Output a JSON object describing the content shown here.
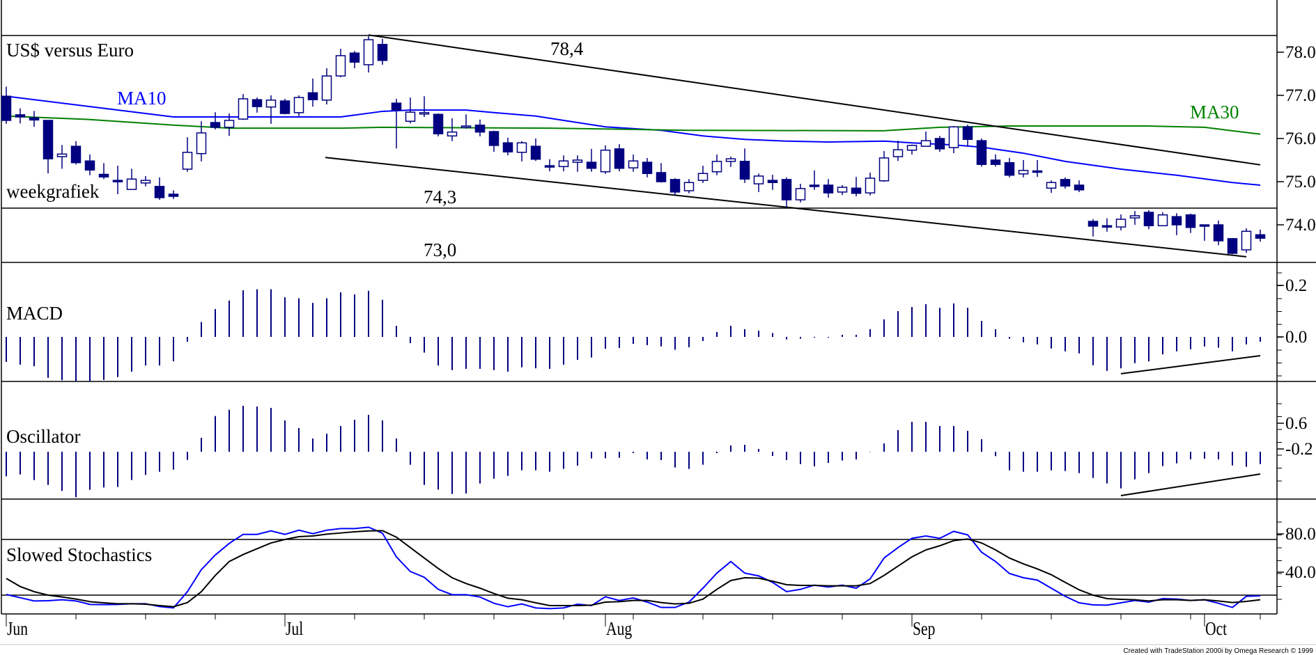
{
  "colors": {
    "candle": "#000080",
    "ma10": "#0000ff",
    "ma30": "#008000",
    "histogram": "#000080",
    "stoch_fast": "#0000ff",
    "stoch_slow": "#000000",
    "trendline": "#000000"
  },
  "chart_data": [
    {
      "type": "candlestick",
      "title": "US$ versus Euro",
      "subtitle": "weekgrafiek",
      "ylim": [
        73.0,
        78.4
      ],
      "yticks": [
        {
          "v": 78,
          "label": "78.0"
        },
        {
          "v": 77,
          "label": "77.0"
        },
        {
          "v": 76,
          "label": "76.0"
        },
        {
          "v": 75,
          "label": "75.0"
        },
        {
          "v": 74,
          "label": "74.0"
        }
      ],
      "level_labels": {
        "top": "78,4",
        "middle": "74,3",
        "bottom": "73,0"
      },
      "ohlc": [
        [
          76.98,
          77.2,
          76.34,
          76.42
        ],
        [
          76.55,
          76.7,
          76.35,
          76.5
        ],
        [
          76.48,
          76.64,
          76.27,
          76.43
        ],
        [
          76.42,
          76.42,
          75.19,
          75.53
        ],
        [
          75.58,
          75.85,
          75.3,
          75.64
        ],
        [
          75.82,
          75.94,
          75.4,
          75.44
        ],
        [
          75.48,
          75.63,
          75.15,
          75.27
        ],
        [
          75.17,
          75.43,
          75.06,
          75.11
        ],
        [
          75.03,
          75.37,
          74.71,
          75.0
        ],
        [
          74.82,
          75.3,
          74.82,
          75.06
        ],
        [
          74.97,
          75.13,
          74.89,
          75.03
        ],
        [
          74.89,
          75.1,
          74.58,
          74.63
        ],
        [
          74.71,
          74.8,
          74.6,
          74.66
        ],
        [
          75.29,
          76.03,
          75.23,
          75.68
        ],
        [
          75.65,
          76.4,
          75.47,
          76.13
        ],
        [
          76.37,
          76.61,
          76.21,
          76.26
        ],
        [
          76.26,
          76.58,
          76.06,
          76.42
        ],
        [
          76.45,
          77.03,
          76.43,
          76.92
        ],
        [
          76.9,
          76.95,
          76.6,
          76.74
        ],
        [
          76.73,
          77.0,
          76.34,
          76.89
        ],
        [
          76.87,
          76.92,
          76.56,
          76.58
        ],
        [
          76.6,
          77.0,
          76.52,
          76.95
        ],
        [
          77.06,
          77.39,
          76.74,
          76.9
        ],
        [
          76.89,
          77.63,
          76.79,
          77.45
        ],
        [
          77.45,
          78.08,
          77.42,
          77.92
        ],
        [
          77.98,
          78.03,
          77.63,
          77.77
        ],
        [
          77.71,
          78.37,
          77.53,
          78.29
        ],
        [
          78.18,
          78.31,
          77.71,
          77.81
        ],
        [
          76.82,
          76.92,
          75.77,
          76.66
        ],
        [
          76.4,
          76.95,
          76.35,
          76.61
        ],
        [
          76.57,
          76.98,
          76.5,
          76.6
        ],
        [
          76.56,
          76.58,
          76.05,
          76.11
        ],
        [
          76.06,
          76.47,
          75.94,
          76.15
        ],
        [
          76.26,
          76.56,
          76.23,
          76.29
        ],
        [
          76.31,
          76.44,
          76.05,
          76.15
        ],
        [
          76.16,
          76.18,
          75.69,
          75.84
        ],
        [
          75.9,
          76.02,
          75.61,
          75.69
        ],
        [
          75.68,
          75.94,
          75.47,
          75.9
        ],
        [
          75.82,
          76.0,
          75.48,
          75.52
        ],
        [
          75.37,
          75.52,
          75.24,
          75.34
        ],
        [
          75.35,
          75.61,
          75.24,
          75.48
        ],
        [
          75.45,
          75.61,
          75.23,
          75.5
        ],
        [
          75.45,
          75.76,
          75.23,
          75.31
        ],
        [
          75.23,
          75.84,
          75.18,
          75.73
        ],
        [
          75.76,
          75.87,
          75.24,
          75.31
        ],
        [
          75.32,
          75.63,
          75.23,
          75.48
        ],
        [
          75.45,
          75.55,
          75.1,
          75.19
        ],
        [
          75.21,
          75.43,
          74.98,
          75.0
        ],
        [
          75.05,
          75.08,
          74.68,
          74.76
        ],
        [
          74.79,
          75.06,
          74.73,
          74.98
        ],
        [
          75.03,
          75.37,
          74.97,
          75.19
        ],
        [
          75.23,
          75.63,
          75.15,
          75.47
        ],
        [
          75.47,
          75.58,
          75.34,
          75.53
        ],
        [
          75.47,
          75.77,
          74.97,
          75.06
        ],
        [
          74.95,
          75.19,
          74.76,
          75.13
        ],
        [
          75.03,
          75.16,
          74.81,
          74.98
        ],
        [
          75.05,
          75.1,
          74.4,
          74.58
        ],
        [
          74.58,
          74.95,
          74.52,
          74.84
        ],
        [
          74.92,
          75.26,
          74.81,
          74.89
        ],
        [
          74.92,
          75.06,
          74.63,
          74.74
        ],
        [
          74.76,
          74.92,
          74.69,
          74.87
        ],
        [
          74.85,
          75.11,
          74.66,
          74.73
        ],
        [
          74.74,
          75.21,
          74.68,
          75.08
        ],
        [
          75.02,
          75.71,
          75.0,
          75.55
        ],
        [
          75.58,
          75.95,
          75.48,
          75.74
        ],
        [
          75.73,
          75.86,
          75.63,
          75.84
        ],
        [
          75.82,
          76.16,
          75.82,
          75.95
        ],
        [
          76.0,
          76.06,
          75.69,
          75.76
        ],
        [
          75.79,
          76.29,
          75.66,
          76.27
        ],
        [
          76.27,
          76.32,
          75.82,
          75.98
        ],
        [
          75.95,
          76.0,
          75.35,
          75.4
        ],
        [
          75.5,
          75.63,
          75.35,
          75.4
        ],
        [
          75.44,
          75.55,
          75.1,
          75.15
        ],
        [
          75.18,
          75.5,
          75.1,
          75.26
        ],
        [
          75.25,
          75.5,
          75.11,
          75.24
        ],
        [
          74.85,
          75.03,
          74.74,
          74.98
        ],
        [
          75.05,
          75.1,
          74.84,
          74.9
        ],
        [
          74.92,
          75.03,
          74.76,
          74.81
        ],
        [
          74.08,
          74.13,
          73.73,
          73.97
        ],
        [
          73.98,
          74.15,
          73.84,
          73.95
        ],
        [
          73.95,
          74.24,
          73.87,
          74.13
        ],
        [
          74.16,
          74.32,
          74.0,
          74.21
        ],
        [
          74.29,
          74.34,
          73.9,
          73.98
        ],
        [
          73.98,
          74.29,
          73.97,
          74.23
        ],
        [
          74.19,
          74.27,
          73.76,
          74.0
        ],
        [
          74.23,
          74.26,
          73.81,
          73.94
        ],
        [
          74.0,
          74.0,
          73.63,
          73.98
        ],
        [
          74.0,
          74.1,
          73.53,
          73.63
        ],
        [
          73.68,
          73.69,
          73.32,
          73.34
        ],
        [
          73.42,
          73.92,
          73.35,
          73.85
        ],
        [
          73.77,
          73.89,
          73.61,
          73.69
        ]
      ],
      "series": [
        {
          "name": "MA10",
          "points": [
            [
              0,
              76.98
            ],
            [
              6,
              76.74
            ],
            [
              12,
              76.5
            ],
            [
              24,
              76.5
            ],
            [
              27,
              76.63
            ],
            [
              29,
              76.66
            ],
            [
              33,
              76.66
            ],
            [
              35,
              76.6
            ],
            [
              38,
              76.52
            ],
            [
              43,
              76.27
            ],
            [
              47,
              76.19
            ],
            [
              50,
              76.06
            ],
            [
              53,
              75.98
            ],
            [
              56,
              75.94
            ],
            [
              59,
              75.92
            ],
            [
              63,
              75.94
            ],
            [
              65,
              75.9
            ],
            [
              68,
              75.85
            ],
            [
              70,
              75.8
            ],
            [
              73,
              75.66
            ],
            [
              76,
              75.47
            ],
            [
              80,
              75.29
            ],
            [
              84,
              75.15
            ],
            [
              88,
              74.98
            ],
            [
              90,
              74.92
            ]
          ]
        },
        {
          "name": "MA30",
          "points": [
            [
              0,
              76.52
            ],
            [
              6,
              76.44
            ],
            [
              12,
              76.31
            ],
            [
              16,
              76.24
            ],
            [
              24,
              76.24
            ],
            [
              27,
              76.26
            ],
            [
              39,
              76.24
            ],
            [
              49,
              76.19
            ],
            [
              63,
              76.18
            ],
            [
              67,
              76.26
            ],
            [
              72,
              76.29
            ],
            [
              82,
              76.29
            ],
            [
              86,
              76.26
            ],
            [
              90,
              76.1
            ]
          ]
        }
      ],
      "trendlines": [
        [
          [
            26,
            78.4
          ],
          [
            90,
            75.39
          ]
        ],
        [
          [
            22.9,
            75.56
          ],
          [
            89,
            73.26
          ]
        ]
      ]
    },
    {
      "type": "bar",
      "title": "MACD",
      "yticks": [
        {
          "v": 0.2,
          "label": "0.2"
        },
        {
          "v": 0.0,
          "label": "0.0"
        }
      ],
      "values": [
        -0.097,
        -0.108,
        -0.114,
        -0.159,
        -0.168,
        -0.172,
        -0.172,
        -0.167,
        -0.156,
        -0.135,
        -0.111,
        -0.111,
        -0.095,
        -0.019,
        0.058,
        0.108,
        0.141,
        0.181,
        0.185,
        0.185,
        0.154,
        0.15,
        0.132,
        0.15,
        0.173,
        0.165,
        0.179,
        0.144,
        0.043,
        -0.024,
        -0.061,
        -0.111,
        -0.129,
        -0.124,
        -0.124,
        -0.129,
        -0.135,
        -0.118,
        -0.122,
        -0.124,
        -0.108,
        -0.089,
        -0.08,
        -0.046,
        -0.043,
        -0.027,
        -0.032,
        -0.037,
        -0.05,
        -0.04,
        -0.016,
        0.019,
        0.043,
        0.03,
        0.024,
        0.015,
        -0.01,
        -0.007,
        -0.003,
        -0.003,
        0.008,
        0.008,
        0.03,
        0.068,
        0.1,
        0.116,
        0.127,
        0.113,
        0.13,
        0.113,
        0.062,
        0.03,
        -0.007,
        -0.021,
        -0.029,
        -0.045,
        -0.056,
        -0.064,
        -0.11,
        -0.132,
        -0.122,
        -0.102,
        -0.095,
        -0.068,
        -0.056,
        -0.048,
        -0.037,
        -0.042,
        -0.056,
        -0.029,
        -0.019
      ],
      "trendline": [
        [
          80,
          -0.143
        ],
        [
          90,
          -0.073
        ]
      ]
    },
    {
      "type": "bar",
      "title": "Oscillator",
      "yticks": [
        {
          "label": "0.6"
        },
        {
          "label": "-0.2"
        }
      ],
      "values": [
        -0.517,
        -0.478,
        -0.595,
        -0.698,
        -0.824,
        -0.956,
        -0.8,
        -0.751,
        -0.741,
        -0.595,
        -0.488,
        -0.42,
        -0.376,
        -0.171,
        0.293,
        0.751,
        0.883,
        0.966,
        0.951,
        0.922,
        0.659,
        0.498,
        0.278,
        0.38,
        0.541,
        0.673,
        0.776,
        0.659,
        0.278,
        -0.273,
        -0.698,
        -0.795,
        -0.888,
        -0.878,
        -0.668,
        -0.566,
        -0.507,
        -0.39,
        -0.39,
        -0.42,
        -0.361,
        -0.293,
        -0.141,
        -0.137,
        -0.127,
        -0.029,
        -0.161,
        -0.176,
        -0.332,
        -0.361,
        -0.273,
        -0.03,
        0.132,
        0.146,
        0.059,
        -0.088,
        -0.176,
        -0.259,
        -0.307,
        -0.234,
        -0.185,
        -0.161,
        -0.005,
        0.176,
        0.454,
        0.629,
        0.629,
        0.541,
        0.541,
        0.439,
        0.263,
        -0.093,
        -0.39,
        -0.42,
        -0.42,
        -0.39,
        -0.405,
        -0.449,
        -0.551,
        -0.668,
        -0.771,
        -0.58,
        -0.449,
        -0.302,
        -0.244,
        -0.161,
        -0.146,
        -0.161,
        -0.288,
        -0.317,
        -0.259
      ],
      "trendline": [
        [
          80,
          -0.922
        ],
        [
          90,
          -0.469
        ]
      ]
    },
    {
      "type": "line",
      "title": "Slowed Stochastics",
      "ylim": [
        0,
        100
      ],
      "yticks": [
        {
          "v": 80,
          "label": "80.0"
        },
        {
          "v": 40,
          "label": "40.0"
        }
      ],
      "levels": [
        80,
        20
      ],
      "series": [
        {
          "key": "fast",
          "values": [
            20.75,
            17.25,
            13.75,
            14,
            15,
            13.75,
            10,
            9.75,
            10,
            10.75,
            10.75,
            7.75,
            6.25,
            23.75,
            47.5,
            63.25,
            75.75,
            85.5,
            85.5,
            89.25,
            85.5,
            90,
            86.25,
            90,
            91.75,
            91.75,
            93.25,
            86.75,
            61.25,
            45.5,
            39.25,
            26.25,
            20.5,
            20.5,
            18,
            11.25,
            7.5,
            10.5,
            6.25,
            5.5,
            6.25,
            10.25,
            8.75,
            18.25,
            14.25,
            17,
            12.5,
            6.75,
            6.75,
            12.5,
            27.5,
            43.75,
            56.25,
            43.75,
            40.75,
            33.75,
            23.75,
            26.25,
            30.75,
            28.75,
            30.75,
            27.5,
            37.5,
            60,
            71.25,
            81.25,
            83.75,
            81.25,
            88.75,
            85,
            66.25,
            56.25,
            43.25,
            38.75,
            36.25,
            27.5,
            18.75,
            11.75,
            9.5,
            9.25,
            11.75,
            14.25,
            12.5,
            16.25,
            15.75,
            14.25,
            15,
            11.25,
            6.75,
            18.75,
            19.25
          ]
        },
        {
          "key": "slow",
          "values": [
            38,
            29.25,
            23.75,
            20,
            18,
            15.75,
            13,
            11.75,
            10.75,
            10.75,
            10.25,
            8.75,
            7.5,
            12,
            23.75,
            41.25,
            56.25,
            63.75,
            70,
            76.25,
            80,
            83,
            83.75,
            85.75,
            87,
            88.25,
            89.25,
            89.5,
            82.5,
            71.25,
            60,
            48.75,
            38.75,
            32.5,
            27.5,
            21.75,
            16.75,
            15,
            11.75,
            8.75,
            8.75,
            8.75,
            9.25,
            12.5,
            13,
            14.25,
            14.25,
            12,
            10.5,
            11.25,
            15.75,
            26.25,
            35.75,
            38.75,
            38.25,
            35,
            31.25,
            30.5,
            30.5,
            30,
            30,
            30,
            32.5,
            41.25,
            51.25,
            61.25,
            68.75,
            73.25,
            78.75,
            80.5,
            76.25,
            68.75,
            60,
            53.75,
            48.25,
            42,
            33.75,
            25.75,
            20,
            16.25,
            15.5,
            15,
            13.75,
            15,
            15,
            14.25,
            15,
            13.75,
            12,
            13.25,
            15
          ]
        }
      ]
    }
  ],
  "x_axis": {
    "months": [
      {
        "label": "Jun",
        "bar": 0
      },
      {
        "label": "Jul",
        "bar": 20
      },
      {
        "label": "Aug",
        "bar": 43
      },
      {
        "label": "Sep",
        "bar": 65
      },
      {
        "label": "Oct",
        "bar": 86
      }
    ]
  },
  "footer": "Created with TradeStation 2000i by Omega Research © 1999"
}
